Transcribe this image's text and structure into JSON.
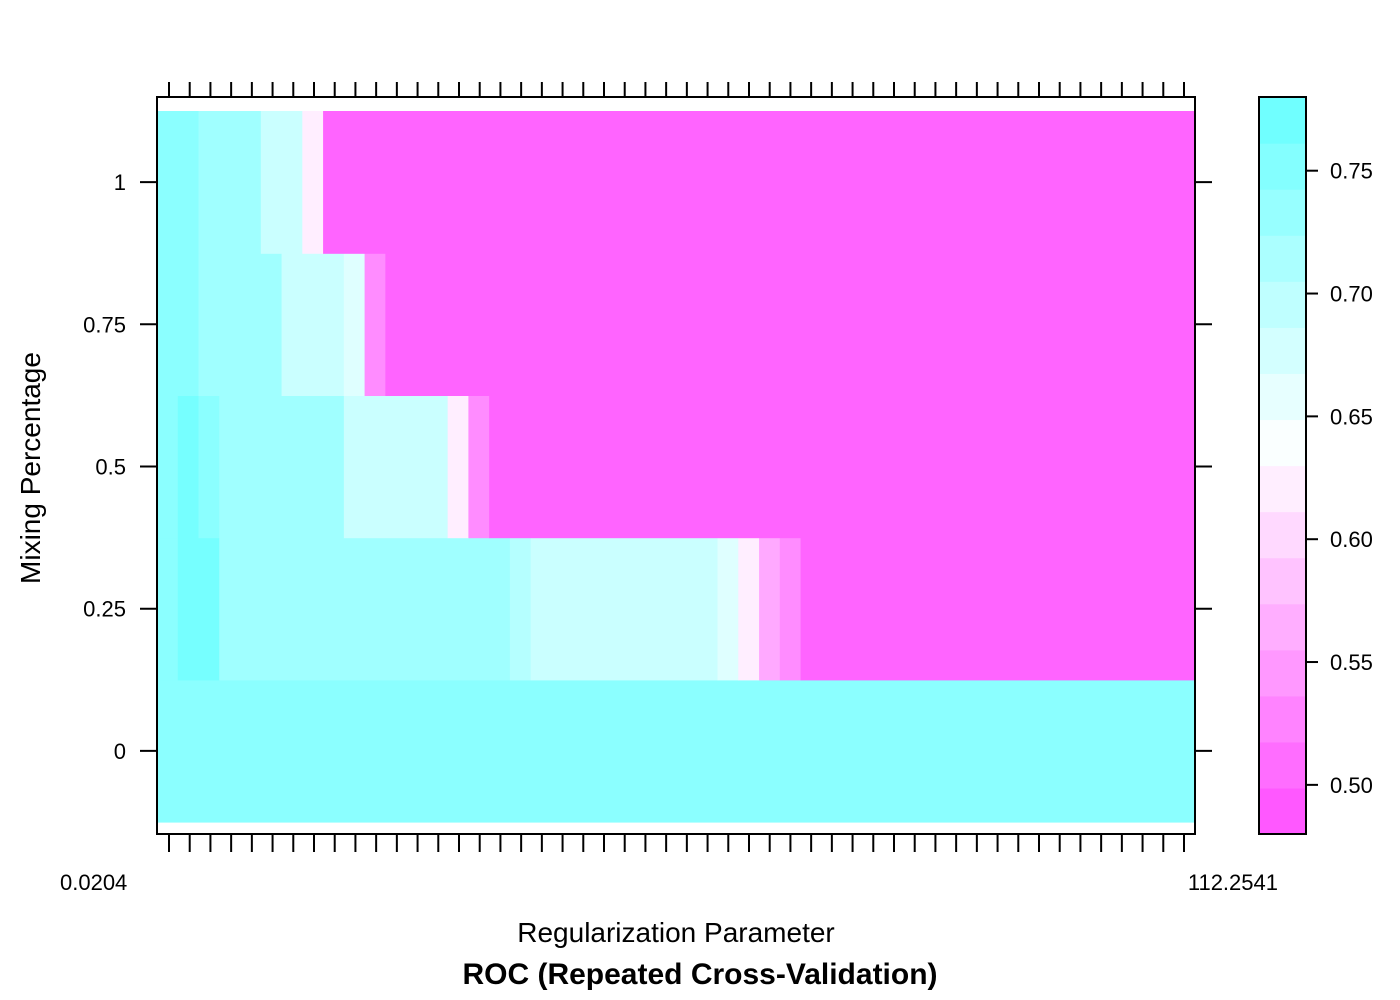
{
  "chart_data": {
    "type": "heatmap",
    "title": "ROC (Repeated Cross-Validation)",
    "xlabel": "Regularization Parameter",
    "ylabel": "Mixing Percentage",
    "y_values": [
      0,
      0.25,
      0.5,
      0.75,
      1
    ],
    "y_tick_labels": [
      "0",
      "0.25",
      "0.5",
      "0.75",
      "1"
    ],
    "x_count": 50,
    "x_first_label": "0.0204",
    "x_last_label": "112.2541",
    "colorbar": {
      "range": [
        0.48,
        0.78
      ],
      "ticks": [
        0.5,
        0.55,
        0.6,
        0.65,
        0.7,
        0.75
      ],
      "tick_labels": [
        "0.50",
        "0.55",
        "0.60",
        "0.65",
        "0.70",
        "0.75"
      ],
      "low_color": "#ff4dff",
      "high_color": "#66ffff"
    },
    "rows": [
      {
        "mixing": 0,
        "segments": [
          {
            "from": 0,
            "to": 50,
            "value": 0.745
          }
        ]
      },
      {
        "mixing": 0.25,
        "segments": [
          {
            "from": 0,
            "to": 1,
            "value": 0.745
          },
          {
            "from": 1,
            "to": 3,
            "value": 0.765
          },
          {
            "from": 3,
            "to": 17,
            "value": 0.725
          },
          {
            "from": 17,
            "to": 18,
            "value": 0.705
          },
          {
            "from": 18,
            "to": 27,
            "value": 0.685
          },
          {
            "from": 27,
            "to": 28,
            "value": 0.665
          },
          {
            "from": 28,
            "to": 29,
            "value": 0.62
          },
          {
            "from": 29,
            "to": 30,
            "value": 0.56
          },
          {
            "from": 30,
            "to": 31,
            "value": 0.535
          },
          {
            "from": 31,
            "to": 50,
            "value": 0.5
          }
        ]
      },
      {
        "mixing": 0.5,
        "segments": [
          {
            "from": 0,
            "to": 1,
            "value": 0.745
          },
          {
            "from": 1,
            "to": 2,
            "value": 0.765
          },
          {
            "from": 2,
            "to": 3,
            "value": 0.745
          },
          {
            "from": 3,
            "to": 9,
            "value": 0.725
          },
          {
            "from": 9,
            "to": 14,
            "value": 0.685
          },
          {
            "from": 14,
            "to": 15,
            "value": 0.62
          },
          {
            "from": 15,
            "to": 16,
            "value": 0.535
          },
          {
            "from": 16,
            "to": 50,
            "value": 0.5
          }
        ]
      },
      {
        "mixing": 0.75,
        "segments": [
          {
            "from": 0,
            "to": 2,
            "value": 0.745
          },
          {
            "from": 2,
            "to": 6,
            "value": 0.725
          },
          {
            "from": 6,
            "to": 9,
            "value": 0.685
          },
          {
            "from": 9,
            "to": 10,
            "value": 0.665
          },
          {
            "from": 10,
            "to": 11,
            "value": 0.535
          },
          {
            "from": 11,
            "to": 50,
            "value": 0.5
          }
        ]
      },
      {
        "mixing": 1,
        "segments": [
          {
            "from": 0,
            "to": 2,
            "value": 0.745
          },
          {
            "from": 2,
            "to": 5,
            "value": 0.725
          },
          {
            "from": 5,
            "to": 7,
            "value": 0.685
          },
          {
            "from": 7,
            "to": 8,
            "value": 0.62
          },
          {
            "from": 8,
            "to": 50,
            "value": 0.5
          }
        ]
      }
    ]
  }
}
